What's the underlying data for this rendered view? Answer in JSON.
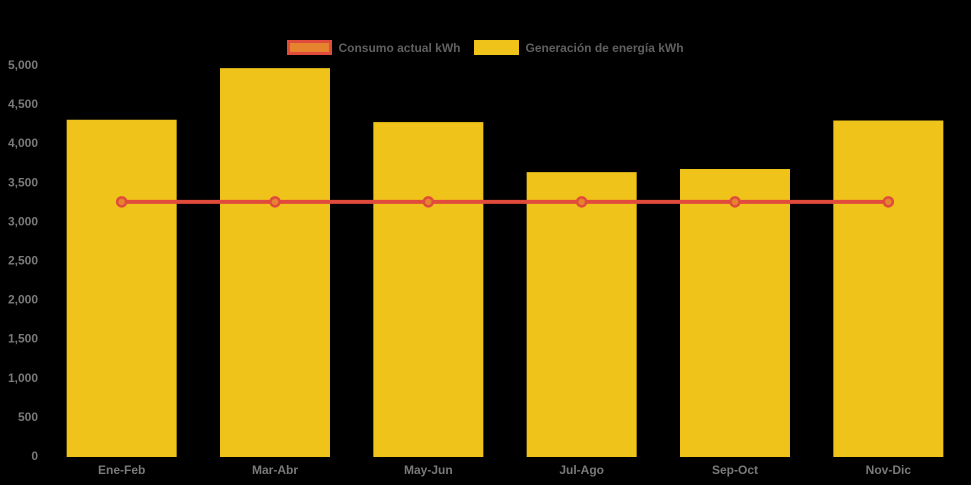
{
  "colors": {
    "background": "#000000",
    "bar": "#efc319",
    "line": "#e14b3c",
    "point_fill": "#e5832f",
    "tick_text": "#7a7a7a",
    "legend_text": "#606060"
  },
  "legend": {
    "items": [
      {
        "label": "Consumo actual kWh",
        "fill": "#e5832f",
        "border": "#e14b3c"
      },
      {
        "label": "Generación de energía kWh",
        "fill": "#efc319",
        "border": "#efc319"
      }
    ]
  },
  "chart_data": {
    "type": "bar",
    "categories": [
      "Ene-Feb",
      "Mar-Abr",
      "May-Jun",
      "Jul-Ago",
      "Sep-Oct",
      "Nov-Dic"
    ],
    "series": [
      {
        "name": "Consumo actual kWh",
        "type": "line",
        "values": [
          3250,
          3250,
          3250,
          3250,
          3250,
          3250
        ]
      },
      {
        "name": "Generación de energía kWh",
        "type": "bar",
        "values": [
          4300,
          4960,
          4270,
          3630,
          3670,
          4290
        ]
      }
    ],
    "title": "",
    "xlabel": "",
    "ylabel": "",
    "ylim": [
      0,
      5000
    ],
    "ytick_step": 500,
    "ytick_labels": [
      "0",
      "500",
      "1,000",
      "1,500",
      "2,000",
      "2,500",
      "3,000",
      "3,500",
      "4,000",
      "4,500",
      "5,000"
    ],
    "grid": false,
    "legend_position": "top"
  }
}
